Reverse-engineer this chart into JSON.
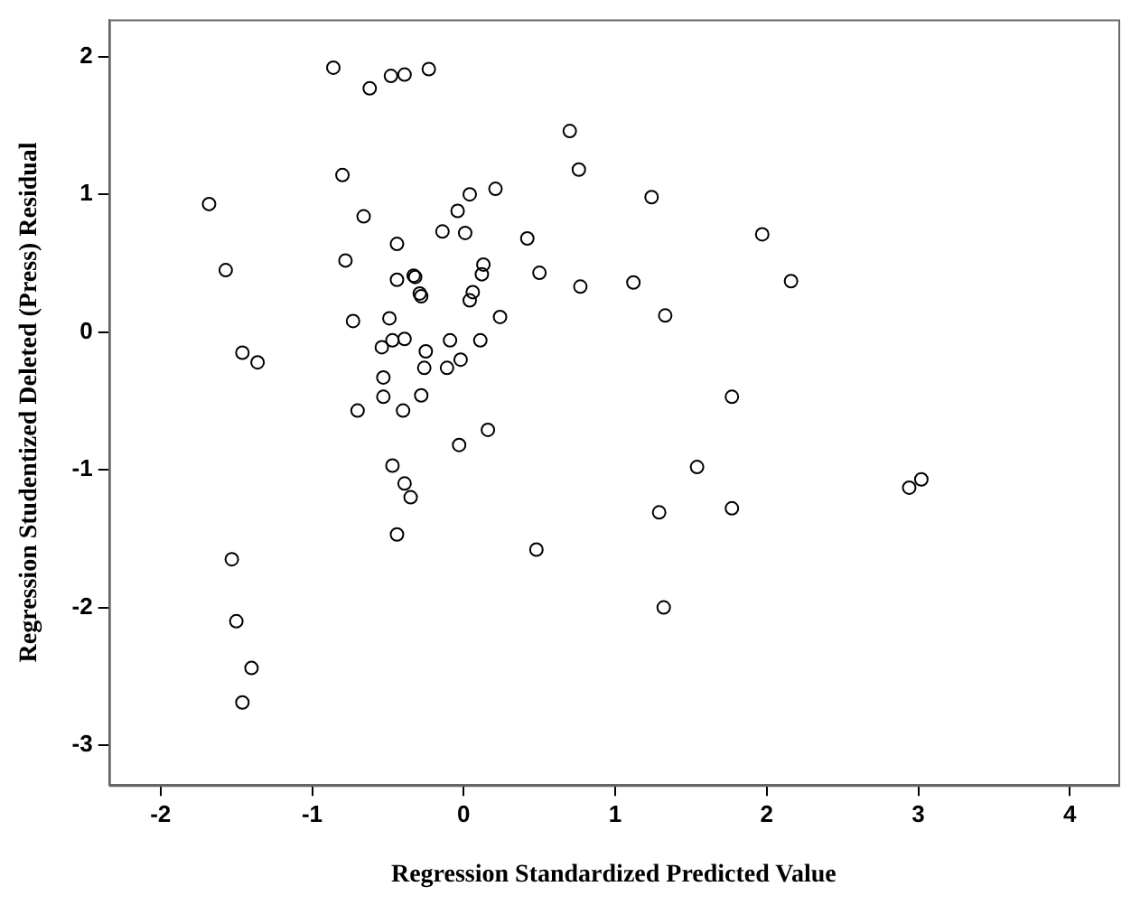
{
  "chart_data": {
    "type": "scatter",
    "xlabel": "Regression Standardized Predicted Value",
    "ylabel": "Regression Studentized Deleted (Press) Residual",
    "x": [
      -0.86,
      -0.62,
      -0.48,
      -0.39,
      -0.23,
      -0.8,
      -1.68,
      -0.66,
      -1.57,
      -0.78,
      -0.44,
      -0.44,
      -0.33,
      -0.32,
      -0.29,
      -0.28,
      -0.73,
      -0.49,
      -0.54,
      -0.47,
      -0.39,
      -0.25,
      -0.09,
      -1.46,
      -1.36,
      -0.53,
      -0.26,
      -0.11,
      -0.02,
      -0.53,
      -0.28,
      0.04,
      0.21,
      0.7,
      0.76,
      1.24,
      -0.04,
      -0.14,
      0.01,
      0.42,
      0.13,
      0.12,
      0.5,
      0.77,
      1.12,
      1.33,
      0.06,
      0.04,
      0.24,
      0.11,
      1.97,
      2.16,
      1.77,
      -1.53,
      -1.5,
      -1.4,
      -1.46,
      -0.7,
      -0.4,
      -0.03,
      -0.47,
      -0.39,
      -0.35,
      -0.44,
      0.16,
      0.48,
      1.29,
      1.32,
      1.54,
      1.77,
      2.94,
      3.02
    ],
    "values": [
      1.92,
      1.77,
      1.86,
      1.87,
      1.91,
      1.14,
      0.93,
      0.84,
      0.45,
      0.52,
      0.64,
      0.38,
      0.41,
      0.4,
      0.28,
      0.26,
      0.08,
      0.1,
      -0.11,
      -0.06,
      -0.05,
      -0.14,
      -0.06,
      -0.15,
      -0.22,
      -0.33,
      -0.26,
      -0.26,
      -0.2,
      -0.47,
      -0.46,
      1.0,
      1.04,
      1.46,
      1.18,
      0.98,
      0.88,
      0.73,
      0.72,
      0.68,
      0.49,
      0.42,
      0.43,
      0.33,
      0.36,
      0.12,
      0.29,
      0.23,
      0.11,
      -0.06,
      0.71,
      0.37,
      -0.47,
      -1.65,
      -2.1,
      -2.44,
      -2.69,
      -0.57,
      -0.57,
      -0.82,
      -0.97,
      -1.1,
      -1.2,
      -1.47,
      -0.71,
      -1.58,
      -1.31,
      -2.0,
      -0.98,
      -1.28,
      -1.13,
      -1.07
    ],
    "color": "#000000",
    "marker": "circle",
    "grid": false,
    "legend": false,
    "xlim": [
      -2.34,
      4.32
    ],
    "xticks": [
      -2,
      -1,
      0,
      1,
      2,
      3,
      4
    ],
    "ylim": [
      -3.29,
      2.27
    ],
    "yticks": [
      -3,
      -2,
      -1,
      0,
      1,
      2
    ]
  }
}
